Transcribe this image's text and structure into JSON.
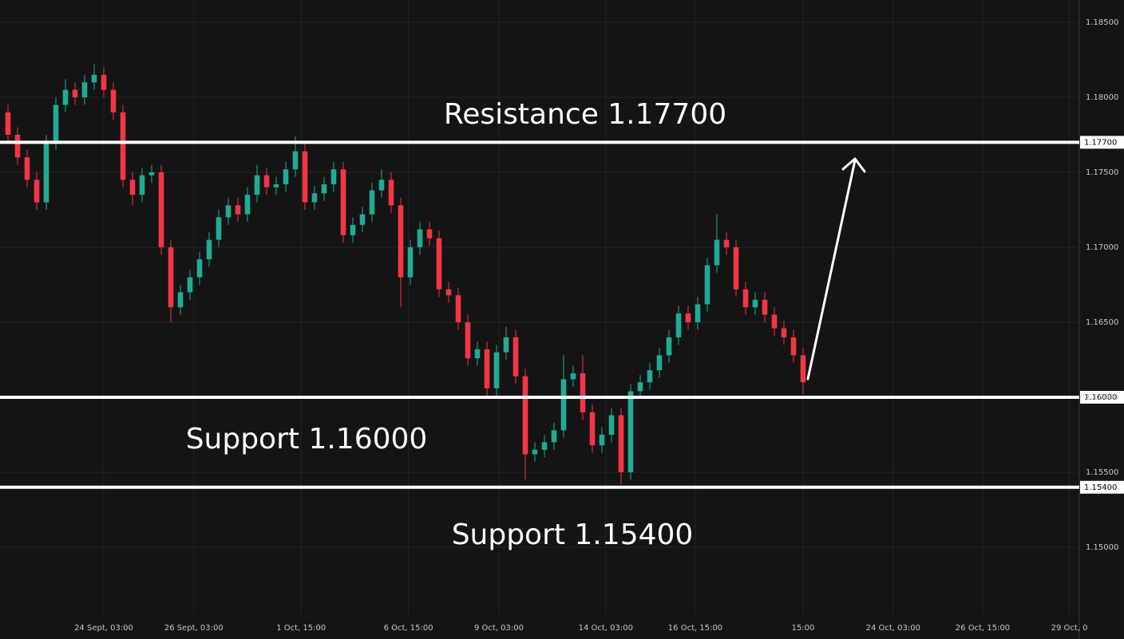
{
  "chart_data": {
    "type": "candlestick",
    "up_color": "#22ab94",
    "down_color": "#f23645",
    "grid": true,
    "ylim": [
      1.14553,
      1.18649
    ],
    "yticks": [
      {
        "value": 1.185,
        "label": "1.18500"
      },
      {
        "value": 1.18,
        "label": "1.18000"
      },
      {
        "value": 1.175,
        "label": "1.17500"
      },
      {
        "value": 1.17,
        "label": "1.17000"
      },
      {
        "value": 1.165,
        "label": "1.16500"
      },
      {
        "value": 1.16,
        "label": "1.16000"
      },
      {
        "value": 1.155,
        "label": "1.15500"
      },
      {
        "value": 1.15,
        "label": "1.15000"
      }
    ],
    "xlim": [
      -0.8333,
      111.6667
    ],
    "xticks": [
      {
        "value": 10,
        "label": "24 Sept, 03:00"
      },
      {
        "value": 19.4,
        "label": "26 Sept, 03:00"
      },
      {
        "value": 30.6,
        "label": "1 Oct, 15:00"
      },
      {
        "value": 41.8,
        "label": "6 Oct, 15:00"
      },
      {
        "value": 51.25,
        "label": "9 Oct, 03:00"
      },
      {
        "value": 62.4,
        "label": "14 Oct, 03:00"
      },
      {
        "value": 71.75,
        "label": "16 Oct, 15:00"
      },
      {
        "value": 83,
        "label": "15:00"
      },
      {
        "value": 92.4,
        "label": "24 Oct, 03:00"
      },
      {
        "value": 101.75,
        "label": "26 Oct, 15:00"
      },
      {
        "value": 110.8,
        "label": "29 Oct, 0"
      }
    ],
    "levels": [
      {
        "value": 1.177,
        "label": "1.17700",
        "annotation": "Resistance 1.17700"
      },
      {
        "value": 1.16,
        "label": "1.16000",
        "annotation": "Support 1.16000"
      },
      {
        "value": 1.154,
        "label": "1.15400",
        "annotation": "Support 1.15400"
      }
    ],
    "x": [
      0,
      1,
      2,
      3,
      4,
      5,
      6,
      7,
      8,
      9,
      10,
      11,
      12,
      13,
      14,
      15,
      16,
      17,
      18,
      19,
      20,
      21,
      22,
      23,
      24,
      25,
      26,
      27,
      28,
      29,
      30,
      31,
      32,
      33,
      34,
      35,
      36,
      37,
      38,
      39,
      40,
      41,
      42,
      43,
      44,
      45,
      46,
      47,
      48,
      49,
      50,
      51,
      52,
      53,
      54,
      55,
      56,
      57,
      58,
      59,
      60,
      61,
      62,
      63,
      64,
      65,
      66,
      67,
      68,
      69,
      70,
      71,
      72,
      73,
      74,
      75,
      76,
      77,
      78,
      79,
      80,
      81,
      82,
      83
    ],
    "open": [
      1.179,
      1.1775,
      1.176,
      1.1745,
      1.173,
      1.177,
      1.1795,
      1.1805,
      1.18,
      1.181,
      1.1815,
      1.1805,
      1.179,
      1.1745,
      1.1735,
      1.1748,
      1.175,
      1.17,
      1.166,
      1.167,
      1.168,
      1.1692,
      1.1705,
      1.172,
      1.1728,
      1.1722,
      1.1735,
      1.1748,
      1.174,
      1.1742,
      1.1752,
      1.1764,
      1.173,
      1.1736,
      1.1742,
      1.1752,
      1.1708,
      1.1715,
      1.1722,
      1.1738,
      1.1745,
      1.1728,
      1.168,
      1.17,
      1.1712,
      1.1706,
      1.1672,
      1.1668,
      1.165,
      1.1626,
      1.1632,
      1.1606,
      1.163,
      1.164,
      1.1614,
      1.1562,
      1.1565,
      1.157,
      1.1578,
      1.1612,
      1.1616,
      1.159,
      1.1568,
      1.1575,
      1.1588,
      1.155,
      1.1604,
      1.161,
      1.1618,
      1.1628,
      1.164,
      1.1656,
      1.165,
      1.1662,
      1.1688,
      1.1705,
      1.17,
      1.1672,
      1.166,
      1.1665,
      1.1655,
      1.1646,
      1.164,
      1.1628
    ],
    "high": [
      1.1795,
      1.178,
      1.1765,
      1.175,
      1.1775,
      1.18,
      1.1812,
      1.181,
      1.1815,
      1.1822,
      1.182,
      1.181,
      1.1795,
      1.175,
      1.1753,
      1.1755,
      1.1755,
      1.1705,
      1.1675,
      1.1685,
      1.1697,
      1.171,
      1.1725,
      1.1733,
      1.1733,
      1.174,
      1.1755,
      1.1753,
      1.1747,
      1.1757,
      1.1774,
      1.1769,
      1.1741,
      1.1747,
      1.1757,
      1.1757,
      1.172,
      1.1727,
      1.1743,
      1.1752,
      1.175,
      1.1733,
      1.1705,
      1.1717,
      1.1717,
      1.1711,
      1.1677,
      1.1673,
      1.1655,
      1.1637,
      1.1637,
      1.1635,
      1.1647,
      1.1645,
      1.1619,
      1.157,
      1.1575,
      1.1583,
      1.1628,
      1.1621,
      1.1628,
      1.1595,
      1.158,
      1.1593,
      1.1593,
      1.1609,
      1.1615,
      1.1623,
      1.1633,
      1.1645,
      1.1661,
      1.1661,
      1.1667,
      1.1693,
      1.1722,
      1.171,
      1.1705,
      1.1677,
      1.167,
      1.167,
      1.166,
      1.1651,
      1.1645,
      1.1633
    ],
    "low": [
      1.177,
      1.1755,
      1.174,
      1.1725,
      1.1725,
      1.1765,
      1.179,
      1.1795,
      1.1795,
      1.1805,
      1.18,
      1.1785,
      1.174,
      1.1728,
      1.173,
      1.1743,
      1.1695,
      1.165,
      1.1655,
      1.1665,
      1.1675,
      1.1687,
      1.17,
      1.1715,
      1.1717,
      1.1717,
      1.173,
      1.1735,
      1.1735,
      1.1737,
      1.1747,
      1.1725,
      1.1725,
      1.1731,
      1.1737,
      1.1703,
      1.1703,
      1.171,
      1.1717,
      1.1733,
      1.1723,
      1.166,
      1.1675,
      1.1695,
      1.1701,
      1.1667,
      1.1663,
      1.1645,
      1.1621,
      1.1621,
      1.1601,
      1.1601,
      1.1625,
      1.1609,
      1.1545,
      1.1557,
      1.156,
      1.1565,
      1.1573,
      1.1607,
      1.1585,
      1.1563,
      1.1563,
      1.157,
      1.1542,
      1.1545,
      1.1599,
      1.1605,
      1.1613,
      1.1623,
      1.1635,
      1.1645,
      1.1645,
      1.1657,
      1.1683,
      1.1695,
      1.1667,
      1.1655,
      1.1655,
      1.165,
      1.1641,
      1.1635,
      1.1623,
      1.1602
    ],
    "close": [
      1.1775,
      1.176,
      1.1745,
      1.173,
      1.177,
      1.1795,
      1.1805,
      1.18,
      1.181,
      1.1815,
      1.1805,
      1.179,
      1.1745,
      1.1735,
      1.1748,
      1.175,
      1.17,
      1.166,
      1.167,
      1.168,
      1.1692,
      1.1705,
      1.172,
      1.1728,
      1.1722,
      1.1735,
      1.1748,
      1.174,
      1.1742,
      1.1752,
      1.1764,
      1.173,
      1.1736,
      1.1742,
      1.1752,
      1.1708,
      1.1715,
      1.1722,
      1.1738,
      1.1745,
      1.1728,
      1.168,
      1.17,
      1.1712,
      1.1706,
      1.1672,
      1.1668,
      1.165,
      1.1626,
      1.1632,
      1.1606,
      1.163,
      1.164,
      1.1614,
      1.1562,
      1.1565,
      1.157,
      1.1578,
      1.1612,
      1.1616,
      1.159,
      1.1568,
      1.1575,
      1.1588,
      1.155,
      1.1604,
      1.161,
      1.1618,
      1.1628,
      1.164,
      1.1656,
      1.165,
      1.1662,
      1.1688,
      1.1705,
      1.17,
      1.1672,
      1.166,
      1.1665,
      1.1655,
      1.1646,
      1.164,
      1.1628,
      1.161
    ]
  }
}
